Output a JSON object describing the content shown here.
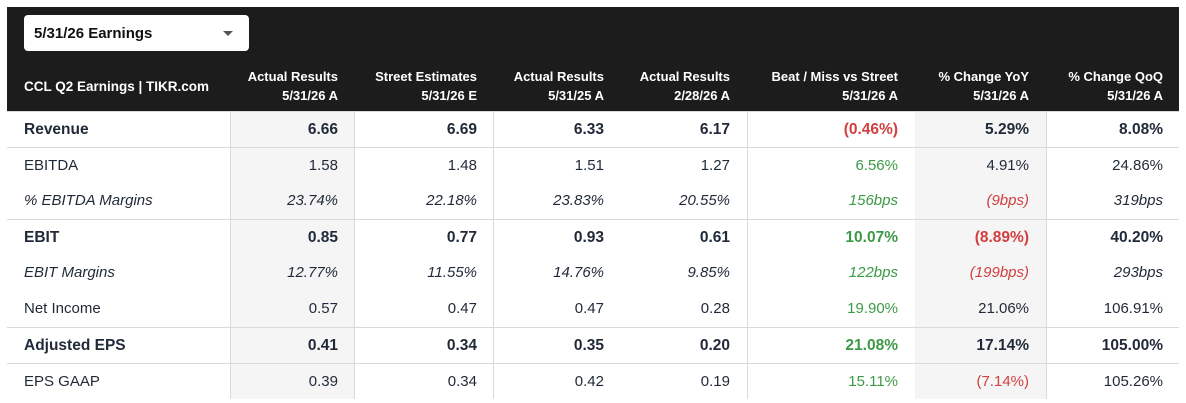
{
  "period_select": {
    "value": "5/31/26 Earnings"
  },
  "header": {
    "title": "CCL Q2 Earnings | TIKR.com",
    "columns": [
      {
        "line1": "Actual Results",
        "line2": "5/31/26 A"
      },
      {
        "line1": "Street Estimates",
        "line2": "5/31/26 E"
      },
      {
        "line1": "Actual Results",
        "line2": "5/31/25 A"
      },
      {
        "line1": "Actual Results",
        "line2": "2/28/26 A"
      },
      {
        "line1": "Beat / Miss vs Street",
        "line2": "5/31/26 A"
      },
      {
        "line1": "% Change YoY",
        "line2": "5/31/26 A"
      },
      {
        "line1": "% Change QoQ",
        "line2": "5/31/26 A"
      }
    ]
  },
  "colors": {
    "positive": "#3c9a46",
    "negative": "#d23f3f",
    "header_bg": "#1c1c1c",
    "text": "#1f2937"
  },
  "rows": [
    {
      "label": "Revenue",
      "style": "bold",
      "values": [
        "6.66",
        "6.69",
        "6.33",
        "6.17",
        "(0.46%)",
        "5.29%",
        "8.08%"
      ],
      "tones": [
        "",
        "",
        "",
        "",
        "neg",
        "",
        ""
      ]
    },
    {
      "label": "EBITDA",
      "style": "normal",
      "values": [
        "1.58",
        "1.48",
        "1.51",
        "1.27",
        "6.56%",
        "4.91%",
        "24.86%"
      ],
      "tones": [
        "",
        "",
        "",
        "",
        "pos",
        "",
        ""
      ]
    },
    {
      "label": "% EBITDA Margins",
      "style": "italic",
      "values": [
        "23.74%",
        "22.18%",
        "23.83%",
        "20.55%",
        "156bps",
        "(9bps)",
        "319bps"
      ],
      "tones": [
        "",
        "",
        "",
        "",
        "pos",
        "neg",
        ""
      ]
    },
    {
      "label": "EBIT",
      "style": "bold",
      "values": [
        "0.85",
        "0.77",
        "0.93",
        "0.61",
        "10.07%",
        "(8.89%)",
        "40.20%"
      ],
      "tones": [
        "",
        "",
        "",
        "",
        "pos",
        "neg",
        ""
      ]
    },
    {
      "label": "EBIT Margins",
      "style": "italic",
      "values": [
        "12.77%",
        "11.55%",
        "14.76%",
        "9.85%",
        "122bps",
        "(199bps)",
        "293bps"
      ],
      "tones": [
        "",
        "",
        "",
        "",
        "pos",
        "neg",
        ""
      ]
    },
    {
      "label": "Net Income",
      "style": "normal",
      "values": [
        "0.57",
        "0.47",
        "0.47",
        "0.28",
        "19.90%",
        "21.06%",
        "106.91%"
      ],
      "tones": [
        "",
        "",
        "",
        "",
        "pos",
        "",
        ""
      ]
    },
    {
      "label": "Adjusted EPS",
      "style": "bold",
      "values": [
        "0.41",
        "0.34",
        "0.35",
        "0.20",
        "21.08%",
        "17.14%",
        "105.00%"
      ],
      "tones": [
        "",
        "",
        "",
        "",
        "pos",
        "",
        ""
      ]
    },
    {
      "label": "EPS GAAP",
      "style": "normal",
      "values": [
        "0.39",
        "0.34",
        "0.42",
        "0.19",
        "15.11%",
        "(7.14%)",
        "105.26%"
      ],
      "tones": [
        "",
        "",
        "",
        "",
        "pos",
        "neg",
        ""
      ]
    }
  ]
}
